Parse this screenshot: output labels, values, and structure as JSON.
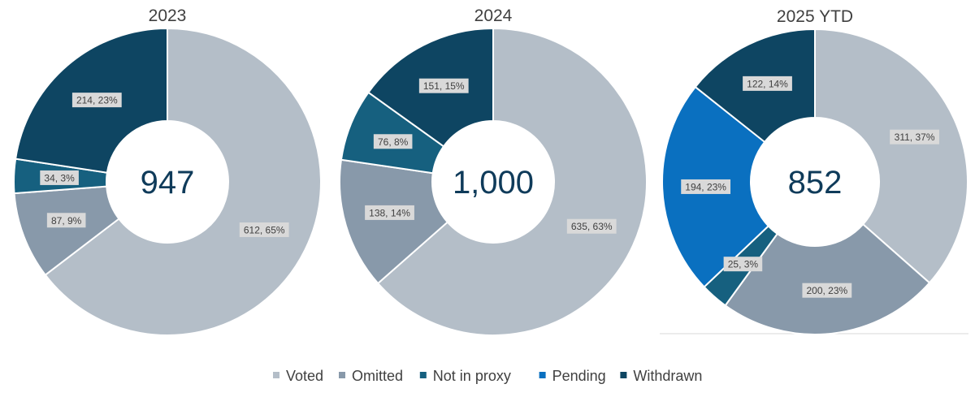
{
  "legend": [
    {
      "name": "Voted",
      "color": "#b4bec8"
    },
    {
      "name": "Omitted",
      "color": "#8899aa"
    },
    {
      "name": "Not in proxy",
      "color": "#16607f"
    },
    {
      "name": "Pending",
      "color": "#0a70c0"
    },
    {
      "name": "Withdrawn",
      "color": "#0e4562"
    }
  ],
  "chart_data": [
    {
      "type": "pie",
      "variant": "donut",
      "title": "2023",
      "center_label": "947",
      "slices": [
        {
          "name": "Voted",
          "value": 612,
          "label": "612, 65%"
        },
        {
          "name": "Omitted",
          "value": 87,
          "label": "87, 9%"
        },
        {
          "name": "Not in proxy",
          "value": 34,
          "label": "34, 3%"
        },
        {
          "name": "Withdrawn",
          "value": 214,
          "label": "214, 23%"
        }
      ]
    },
    {
      "type": "pie",
      "variant": "donut",
      "title": "2024",
      "center_label": "1,000",
      "slices": [
        {
          "name": "Voted",
          "value": 635,
          "label": "635, 63%"
        },
        {
          "name": "Omitted",
          "value": 138,
          "label": "138, 14%"
        },
        {
          "name": "Not in proxy",
          "value": 76,
          "label": "76, 8%"
        },
        {
          "name": "Withdrawn",
          "value": 151,
          "label": "151, 15%"
        }
      ]
    },
    {
      "type": "pie",
      "variant": "donut",
      "title": "2025 YTD",
      "center_label": "852",
      "slices": [
        {
          "name": "Voted",
          "value": 311,
          "label": "311, 37%"
        },
        {
          "name": "Omitted",
          "value": 200,
          "label": "200, 23%"
        },
        {
          "name": "Not in proxy",
          "value": 25,
          "label": "25, 3%"
        },
        {
          "name": "Pending",
          "value": 194,
          "label": "194, 23%"
        },
        {
          "name": "Withdrawn",
          "value": 122,
          "label": "122, 14%"
        }
      ]
    }
  ]
}
